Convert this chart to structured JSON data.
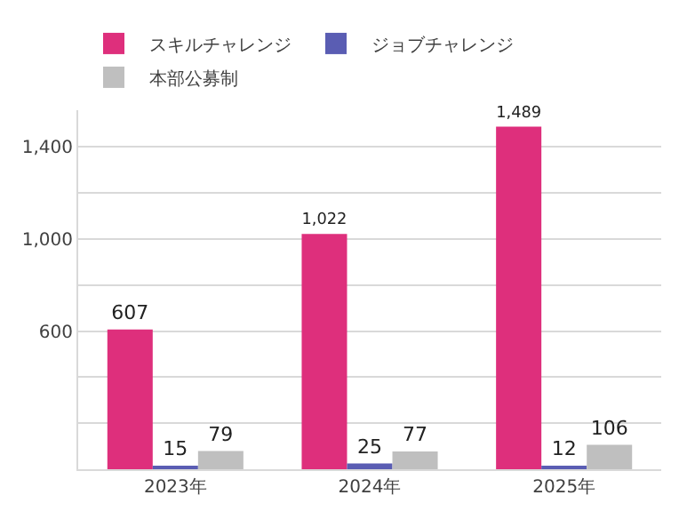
{
  "chart_data": {
    "type": "bar",
    "categories": [
      "2023年",
      "2024年",
      "2025年"
    ],
    "series": [
      {
        "name": "スキルチャレンジ",
        "color": "#de2f7c",
        "values": [
          607,
          1022,
          1489
        ],
        "value_labels": [
          "607",
          "1,022",
          "1,489"
        ]
      },
      {
        "name": "ジョブチャレンジ",
        "color": "#5a5db3",
        "values": [
          15,
          25,
          12
        ],
        "value_labels": [
          "15",
          "25",
          "12"
        ]
      },
      {
        "name": "本部公募制",
        "color": "#bfbfbf",
        "values": [
          79,
          77,
          106
        ],
        "value_labels": [
          "79",
          "77",
          "106"
        ]
      }
    ],
    "ylim": [
      0,
      1560
    ],
    "yticks": [
      {
        "value": 0,
        "label": null
      },
      {
        "value": 200,
        "label": null
      },
      {
        "value": 400,
        "label": null
      },
      {
        "value": 600,
        "label": "600"
      },
      {
        "value": 800,
        "label": null
      },
      {
        "value": 1000,
        "label": "1,000"
      },
      {
        "value": 1200,
        "label": null
      },
      {
        "value": 1400,
        "label": "1,400"
      }
    ],
    "grid": "y",
    "legend": "top left"
  }
}
